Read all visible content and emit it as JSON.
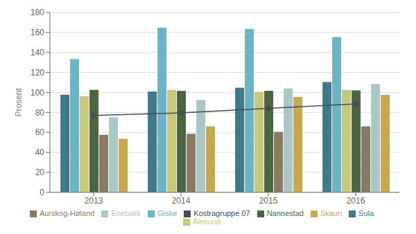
{
  "chart_data": {
    "type": "bar",
    "categories": [
      "2013",
      "2014",
      "2015",
      "2016"
    ],
    "ylabel": "Prosent",
    "ylim": [
      0,
      180
    ],
    "yticks": [
      0,
      20,
      40,
      60,
      80,
      100,
      120,
      140,
      160,
      180
    ],
    "grid": true,
    "legend": "bottom",
    "series": [
      {
        "name": "Sula",
        "type": "bar",
        "color": "#3d7a8a",
        "values": [
          97.8,
          100.9,
          104.7,
          110.4
        ]
      },
      {
        "name": "Giske",
        "type": "bar",
        "color": "#6ab4c8",
        "values": [
          133.4,
          164.7,
          163.5,
          155.4
        ]
      },
      {
        "name": "Ålesund",
        "type": "bar",
        "color": "#c8c87a",
        "values": [
          96.2,
          102.5,
          100.5,
          102.5
        ]
      },
      {
        "name": "Nannestad",
        "type": "bar",
        "color": "#4a6741",
        "values": [
          102.5,
          101.5,
          101.5,
          102.0
        ]
      },
      {
        "name": "Aurskog-Høland",
        "type": "bar",
        "color": "#8a7a62",
        "values": [
          57.5,
          58.5,
          60.5,
          66.0
        ]
      },
      {
        "name": "Enebakk",
        "type": "bar",
        "color": "#a8c8c8",
        "values": [
          75.0,
          92.5,
          104.0,
          108.5
        ]
      },
      {
        "name": "Skaun",
        "type": "bar",
        "color": "#c8a84a",
        "values": [
          53.5,
          66.0,
          95.5,
          97.5
        ]
      },
      {
        "name": "Kostragruppe 07",
        "type": "line",
        "color": "#4a4a5a",
        "marker": "circle",
        "values": [
          77.0,
          79.5,
          84.0,
          88.5
        ]
      }
    ]
  }
}
